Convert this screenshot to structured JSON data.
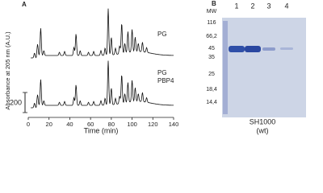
{
  "panel_a": {
    "label": "A",
    "y_label": "Absorbance at 205 nm (A.U.)",
    "x_label": "Time (min)",
    "x_ticks": [
      0,
      20,
      40,
      60,
      80,
      100,
      120,
      140
    ],
    "traces": [
      {
        "labels": [
          "PG"
        ]
      },
      {
        "labels": [
          "PG",
          "PBP4"
        ]
      }
    ],
    "scale_bar": "200"
  },
  "panel_b": {
    "label": "B",
    "mw_header": "MW",
    "mw_markers": [
      "116",
      "66,2",
      "45",
      "35",
      "25",
      "18,4",
      "14,4"
    ],
    "lanes": [
      "1",
      "2",
      "3",
      "4"
    ],
    "caption": "SH1000",
    "caption_sub": "(wt)"
  }
}
